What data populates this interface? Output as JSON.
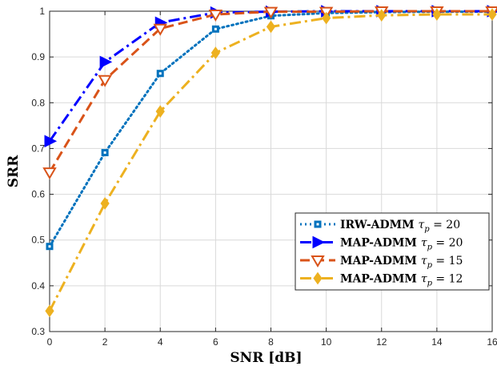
{
  "chart_data": {
    "type": "line",
    "xlabel": "SNR [dB]",
    "ylabel": "SRR",
    "xlim": [
      0,
      16
    ],
    "ylim": [
      0.3,
      1
    ],
    "xticks": [
      "0",
      "2",
      "4",
      "6",
      "8",
      "10",
      "12",
      "14",
      "16"
    ],
    "yticks": [
      "0.3",
      "0.4",
      "0.5",
      "0.6",
      "0.7",
      "0.8",
      "0.9",
      "1"
    ],
    "grid": true,
    "legend_position": "bottom-right",
    "x": [
      0,
      2,
      4,
      6,
      8,
      10,
      12,
      14,
      16
    ],
    "series": [
      {
        "name": "IRW-ADMM τ_p = 20",
        "name_main": "IRW-ADMM",
        "name_tau": "= 20",
        "color": "#0072BD",
        "style": "dotted",
        "marker": "square",
        "values": [
          0.486,
          0.691,
          0.864,
          0.961,
          0.99,
          0.996,
          0.998,
          0.999,
          0.999
        ]
      },
      {
        "name": "MAP-ADMM τ_p = 20",
        "name_main": "MAP-ADMM",
        "name_tau": "= 20",
        "color": "#0000FF",
        "style": "dashdot",
        "marker": "triangle-right",
        "values": [
          0.716,
          0.889,
          0.975,
          0.997,
          0.999,
          1.0,
          1.0,
          1.0,
          1.0
        ]
      },
      {
        "name": "MAP-ADMM τ_p = 15",
        "name_main": "MAP-ADMM",
        "name_tau": "= 15",
        "color": "#D95319",
        "style": "dashed",
        "marker": "triangle-down",
        "values": [
          0.648,
          0.85,
          0.962,
          0.993,
          0.999,
          0.999,
          1.0,
          1.0,
          1.0
        ]
      },
      {
        "name": "MAP-ADMM τ_p = 12",
        "name_main": "MAP-ADMM",
        "name_tau": "= 12",
        "color": "#EDB120",
        "style": "dashdot",
        "marker": "diamond",
        "values": [
          0.345,
          0.58,
          0.781,
          0.909,
          0.966,
          0.985,
          0.991,
          0.993,
          0.993
        ]
      }
    ]
  }
}
